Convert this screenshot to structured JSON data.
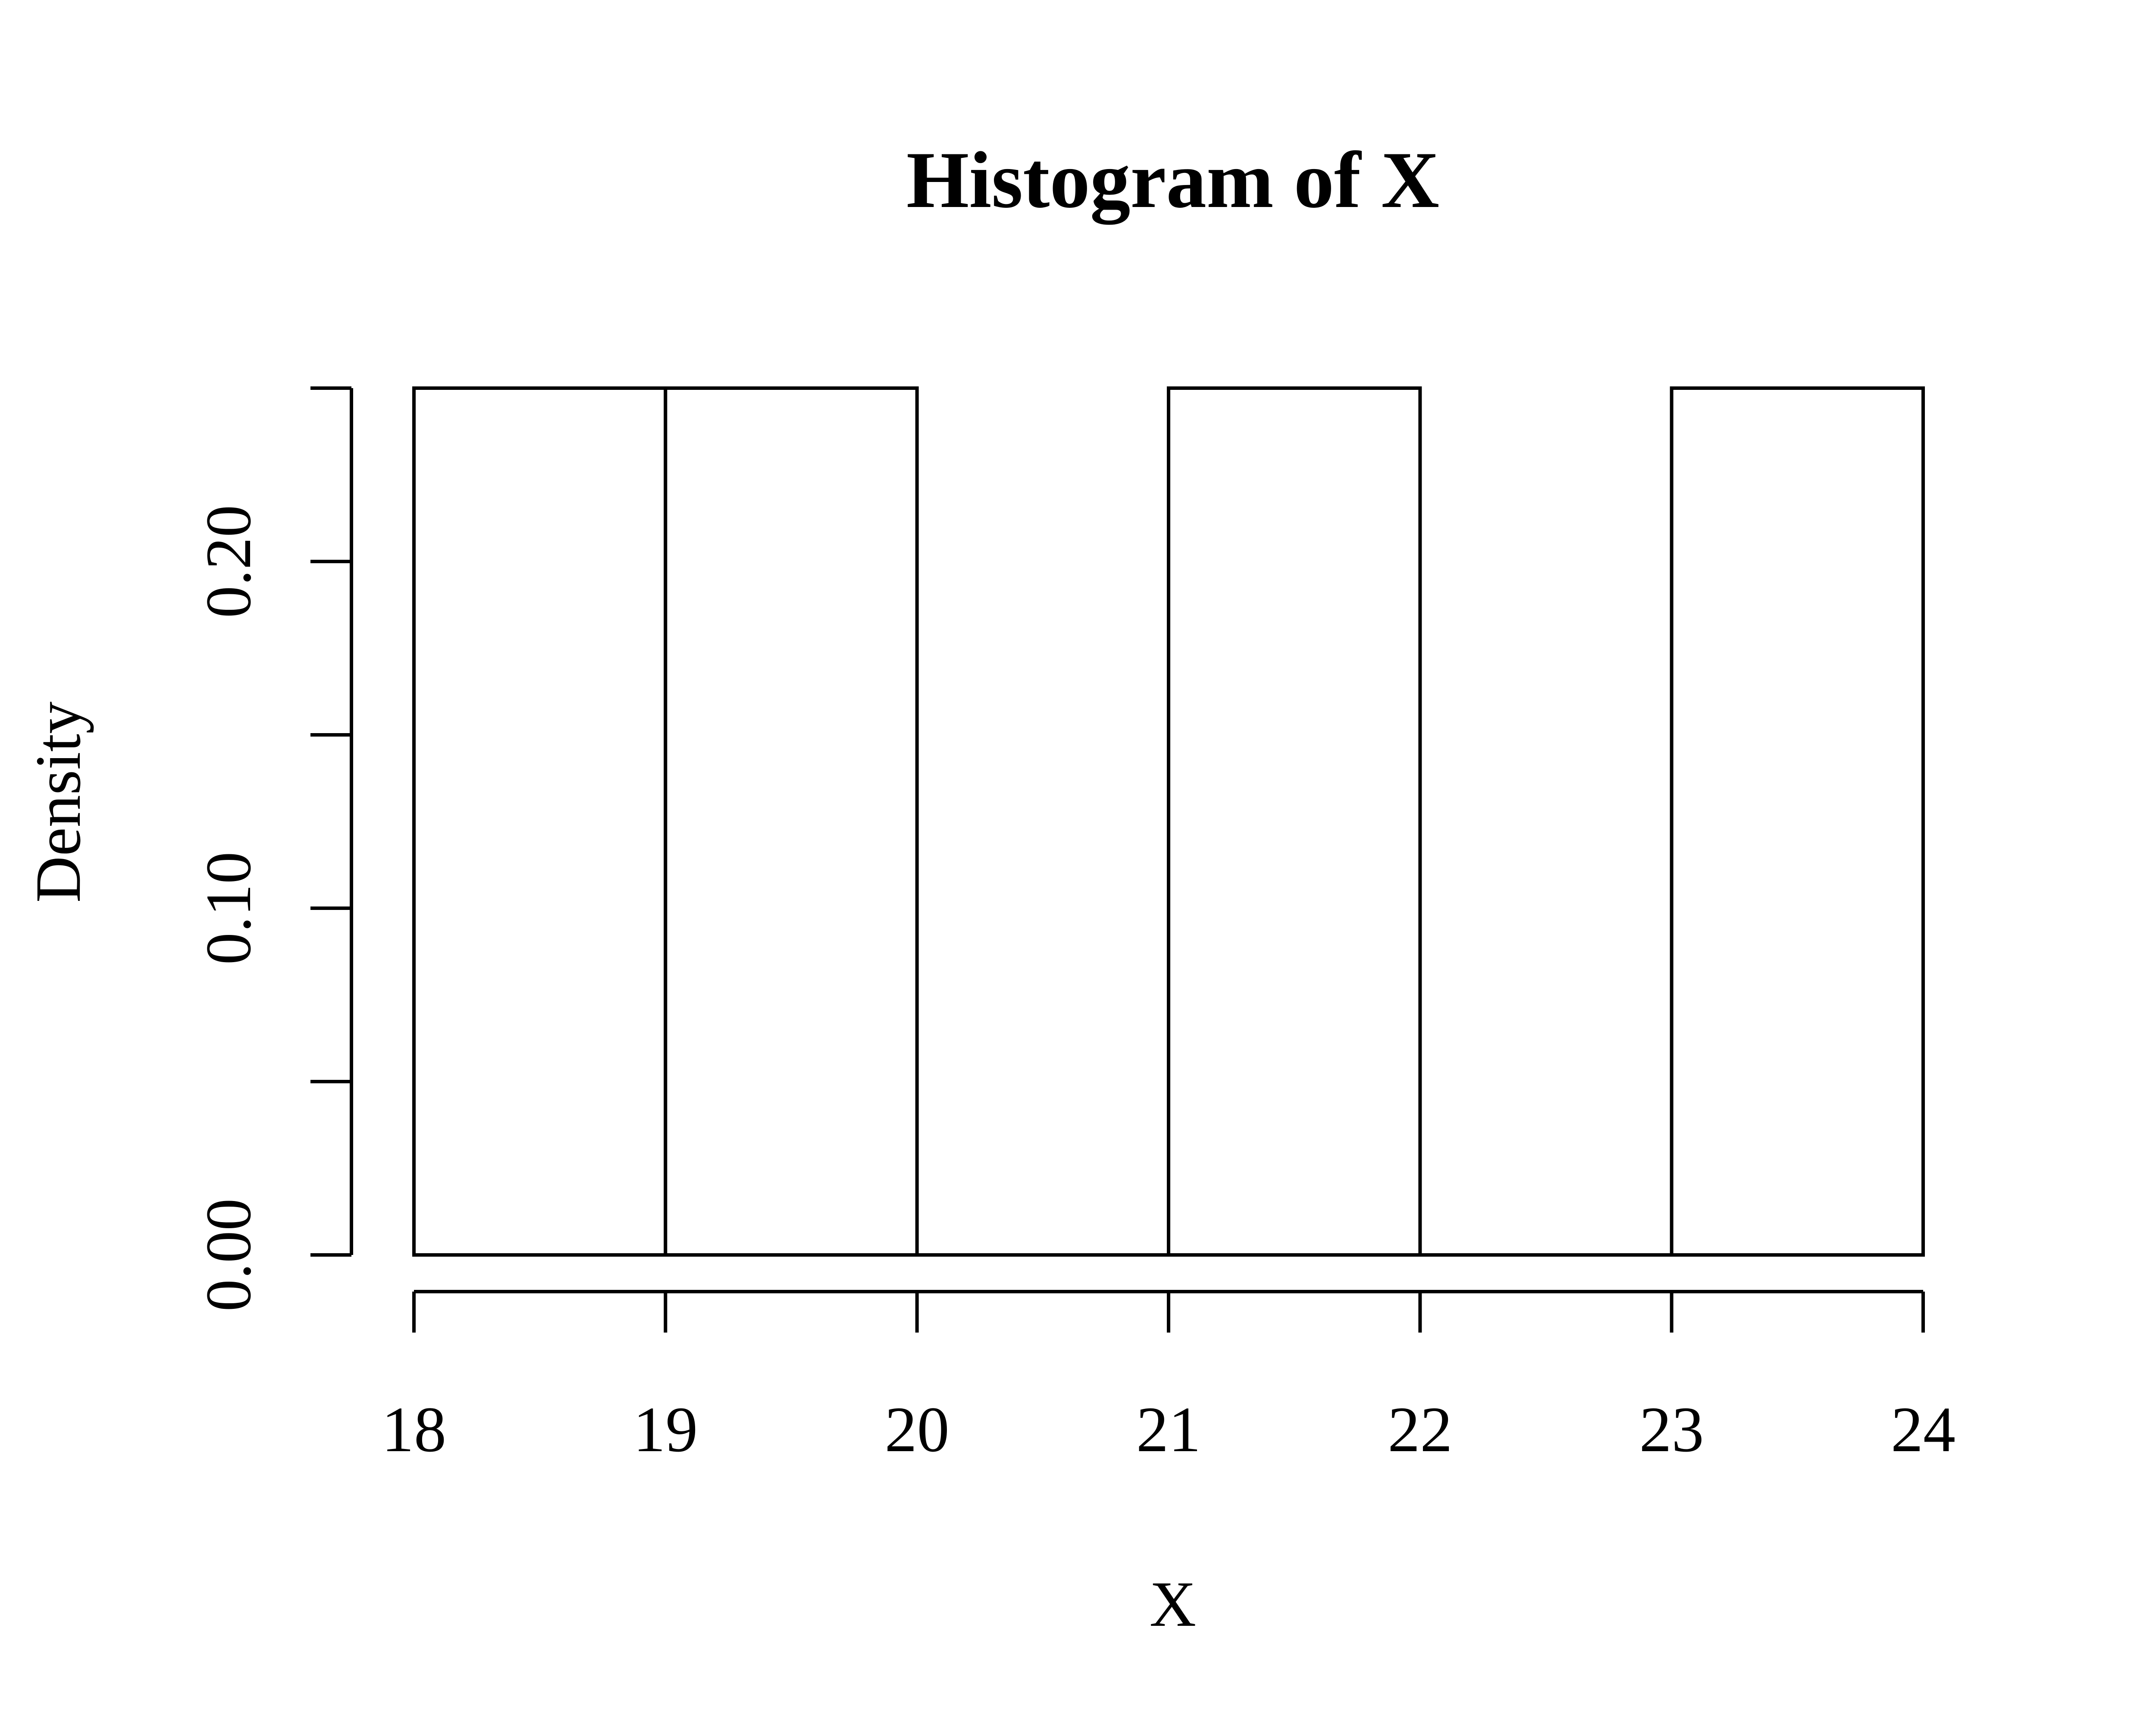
{
  "chart_data": {
    "type": "bar",
    "title": "Histogram of X",
    "xlabel": "X",
    "ylabel": "Density",
    "bin_edges": [
      18,
      19,
      20,
      21,
      22,
      23,
      24
    ],
    "densities": [
      0.25,
      0.25,
      0.0,
      0.25,
      0.0,
      0.25
    ],
    "xlim": [
      18,
      24
    ],
    "ylim": [
      0,
      0.25
    ],
    "x_ticks": [
      "18",
      "19",
      "20",
      "21",
      "22",
      "23",
      "24"
    ],
    "y_ticks": [
      0.0,
      0.05,
      0.1,
      0.15,
      0.2,
      0.25
    ],
    "y_tick_labels": [
      "0.00",
      "",
      "0.10",
      "",
      "0.20",
      ""
    ],
    "grid": false,
    "legend": "none",
    "colors": {
      "bar_fill": "#ffffff",
      "bar_stroke": "#000000"
    }
  }
}
